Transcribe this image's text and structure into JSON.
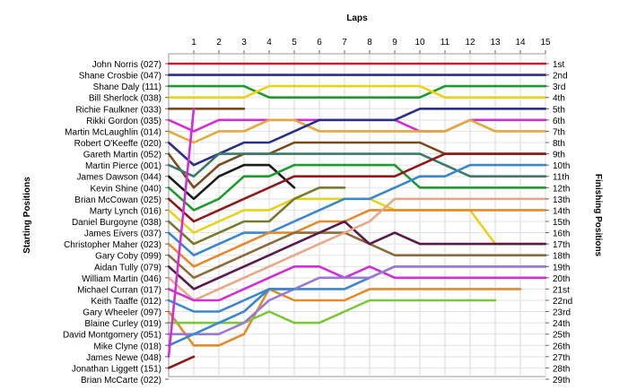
{
  "chart_data": {
    "type": "line",
    "title": "",
    "top_axis_title": "Laps",
    "left_axis_title": "Starting Positions",
    "right_axis_title": "Finishing Positions",
    "laps": [
      1,
      2,
      3,
      4,
      5,
      6,
      7,
      8,
      9,
      10,
      11,
      12,
      13,
      14,
      15
    ],
    "xlim": [
      0,
      15
    ],
    "ylim": [
      1,
      29
    ],
    "grid": true,
    "starting_labels": [
      "John Norris (027)",
      "Shane Crosbie (047)",
      "Shane Daly (111)",
      "Bill Sherlock (038)",
      "Richie Faulkner (033)",
      "Rikki Gordon (035)",
      "Martin McLaughlin (014)",
      "Robert O'Keeffe (020)",
      "Gareth Martin (052)",
      "Martin Pierce (001)",
      "James Dawson (044)",
      "Kevin Shine (040)",
      "Brian McCowan (025)",
      "Marty Lynch (016)",
      "Daniel Burgoyne (038)",
      "James Eivers (037)",
      "Christopher Maher (023)",
      "Gary Coby (099)",
      "Aidan Tully (079)",
      "William Martin (046)",
      "Michael Curran (017)",
      "Keith Taaffe (012)",
      "Gary Wheeler (097)",
      "Blaine Curley (019)",
      "David Montgomery (051)",
      "Mike Clyne (018)",
      "James Newe (048)",
      "Jonathan Liggett (151)",
      "Brian McCarte (022)"
    ],
    "finishing_labels": [
      "1st",
      "2nd",
      "3rd",
      "4th",
      "5th",
      "6th",
      "7th",
      "8th",
      "9th",
      "10th",
      "11th",
      "12th",
      "13th",
      "14th",
      "15th",
      "16th",
      "17th",
      "18th",
      "19th",
      "20th",
      "21st",
      "22nd",
      "23rd",
      "24th",
      "25th",
      "26th",
      "27th",
      "28th",
      "29th"
    ],
    "series": [
      {
        "color": "#d01c2c",
        "start": 1,
        "positions": [
          1,
          1,
          1,
          1,
          1,
          1,
          1,
          1,
          1,
          1,
          1,
          1,
          1,
          1,
          1
        ]
      },
      {
        "color": "#2b2f86",
        "start": 2,
        "positions": [
          2,
          2,
          2,
          2,
          2,
          2,
          2,
          2,
          2,
          2,
          2,
          2,
          2,
          2,
          2
        ]
      },
      {
        "color": "#1e9a2e",
        "start": 3,
        "positions": [
          3,
          3,
          3,
          4,
          4,
          4,
          4,
          4,
          4,
          4,
          3,
          3,
          3,
          3,
          3
        ]
      },
      {
        "color": "#e8d21a",
        "start": 4,
        "positions": [
          4,
          4,
          4,
          3,
          3,
          3,
          3,
          3,
          3,
          3,
          4,
          4,
          4,
          4,
          4
        ]
      },
      {
        "color": "#7a4a1e",
        "start": 5,
        "positions": [
          5,
          5,
          5
        ]
      },
      {
        "color": "#d12fd6",
        "start": 6,
        "positions": [
          7,
          6,
          6,
          6,
          6,
          6,
          6,
          6,
          6,
          7,
          7,
          6,
          6,
          6,
          6
        ]
      },
      {
        "color": "#e4a83c",
        "start": 7,
        "positions": [
          8,
          7,
          7,
          6,
          6,
          7,
          7,
          7,
          7,
          7,
          7,
          6,
          7,
          7,
          7
        ]
      },
      {
        "color": "#2b2f86",
        "start": 8,
        "positions": [
          10,
          9,
          8,
          8,
          7,
          6,
          6,
          6,
          6,
          5,
          5,
          5,
          5,
          5,
          5
        ]
      },
      {
        "color": "#7a4a1e",
        "start": 9,
        "positions": [
          12,
          10,
          9,
          9,
          8,
          8,
          8,
          8,
          8,
          8,
          9,
          9,
          9,
          9,
          9
        ]
      },
      {
        "color": "#3a7a6a",
        "start": 10,
        "positions": [
          11,
          9,
          9,
          9,
          9,
          9,
          9,
          9,
          9,
          9,
          10,
          11,
          11,
          11,
          11
        ]
      },
      {
        "color": "#1a1a1a",
        "start": 11,
        "positions": [
          13,
          11,
          10,
          10,
          12
        ]
      },
      {
        "color": "#1e9a2e",
        "start": 12,
        "positions": [
          14,
          13,
          11,
          11,
          10,
          10,
          10,
          10,
          10,
          12,
          12,
          12,
          12,
          12,
          12
        ]
      },
      {
        "color": "#8e1a1a",
        "start": 13,
        "positions": [
          15,
          14,
          13,
          12,
          11,
          11,
          11,
          11,
          11,
          10,
          9,
          9,
          9,
          9,
          9
        ]
      },
      {
        "color": "#e8d21a",
        "start": 14,
        "positions": [
          16,
          15,
          14,
          14,
          13,
          13,
          13,
          13,
          14,
          14,
          14,
          14,
          17,
          17,
          17
        ]
      },
      {
        "color": "#7a7a2a",
        "start": 15,
        "positions": [
          17,
          16,
          15,
          15,
          13,
          12,
          12
        ]
      },
      {
        "color": "#3a87d0",
        "start": 16,
        "positions": [
          18,
          17,
          16,
          16,
          15,
          14,
          13,
          13,
          12,
          11,
          11,
          10,
          10,
          10,
          10
        ]
      },
      {
        "color": "#e48a2a",
        "start": 17,
        "positions": [
          19,
          18,
          17,
          16,
          16,
          15,
          15,
          14,
          14,
          14,
          14,
          14,
          14,
          14,
          14
        ]
      },
      {
        "color": "#8e6a3a",
        "start": 18,
        "positions": [
          20,
          19,
          18,
          17,
          16,
          16,
          16,
          17,
          18,
          18,
          18,
          18,
          18,
          18,
          18
        ]
      },
      {
        "color": "#5a1a4a",
        "start": 19,
        "positions": [
          21,
          20,
          19,
          18,
          17,
          16,
          15,
          17,
          16,
          17,
          17,
          17,
          17,
          17,
          17
        ]
      },
      {
        "color": "#e8a888",
        "start": 20,
        "positions": [
          22,
          21,
          20,
          19,
          18,
          17,
          16,
          15,
          13,
          13,
          13,
          13,
          13,
          13,
          13
        ]
      },
      {
        "color": "#d12fd6",
        "start": 21,
        "positions": [
          22,
          22,
          21,
          20,
          19,
          19,
          20,
          19,
          20,
          20,
          20,
          20,
          20,
          20,
          20
        ]
      },
      {
        "color": "#3a87d0",
        "start": 22,
        "positions": [
          23,
          23,
          22,
          21,
          21,
          21,
          21,
          20,
          19,
          19,
          19,
          19,
          19,
          19,
          19
        ]
      },
      {
        "color": "#e48a2a",
        "start": 23,
        "positions": [
          26,
          26,
          25,
          21,
          22,
          22,
          22,
          21,
          21,
          21,
          21,
          21,
          21,
          21
        ]
      },
      {
        "color": "#7ac83a",
        "start": 24,
        "positions": [
          24,
          24,
          24,
          23,
          24,
          24,
          23,
          22,
          22,
          22,
          22,
          22,
          22
        ]
      },
      {
        "color": "#9a7ad0",
        "start": 25,
        "positions": [
          25,
          25,
          24,
          22,
          21,
          20,
          20,
          20,
          19,
          19,
          19,
          19,
          19,
          19,
          19
        ]
      },
      {
        "color": "#3a87d0",
        "start": 26,
        "positions": [
          25,
          24,
          23,
          21,
          21
        ]
      },
      {
        "color": "#d12fd6",
        "start": 27,
        "positions": [
          5
        ]
      },
      {
        "color": "#8e1a1a",
        "start": 28,
        "positions": [
          27
        ]
      }
    ]
  }
}
